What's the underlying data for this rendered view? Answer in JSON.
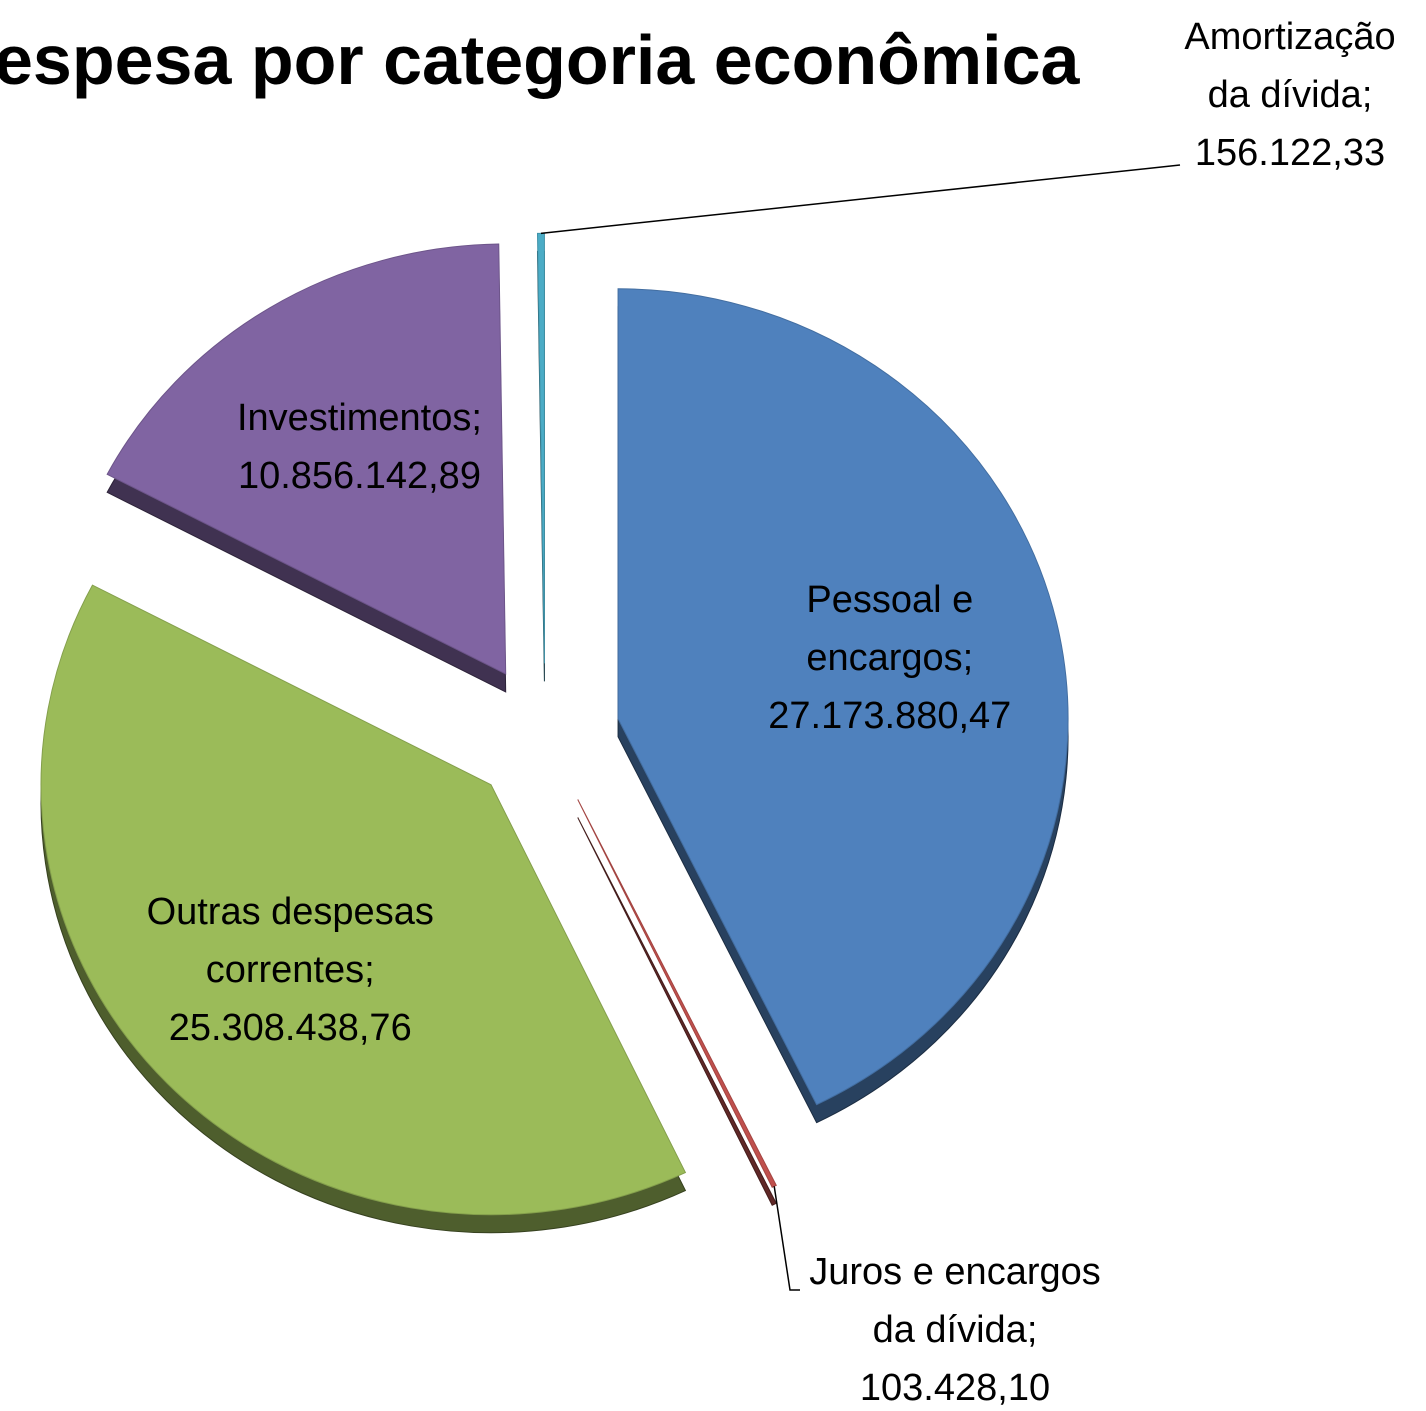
{
  "chart_data": {
    "type": "pie",
    "title": "espesa por categoria econômica",
    "categories": [
      "Pessoal e encargos",
      "Juros e encargos da dívida",
      "Outras despesas correntes",
      "Investimentos",
      "Amortização da dívida"
    ],
    "values": [
      27173880.47,
      103428.1,
      25308438.76,
      10856142.89,
      156122.33
    ],
    "value_labels": [
      "27.173.880,47",
      "103.428,10",
      "25.308.438,76",
      "10.856.142,89",
      "156.122,33"
    ],
    "label_separator": ";",
    "colors": [
      "#4f81bd",
      "#c0504d",
      "#9bbb59",
      "#8064a2",
      "#4bacc6"
    ]
  }
}
